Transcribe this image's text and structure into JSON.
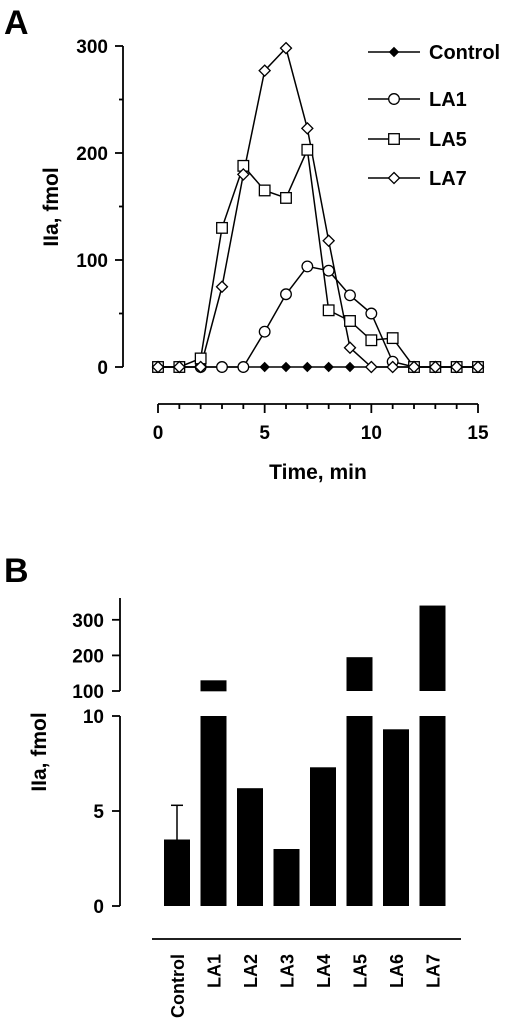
{
  "chart_data": [
    {
      "panel_label": "A",
      "type": "line",
      "xlabel": "Time, min",
      "ylabel": "IIa, fmol",
      "xlim": [
        0,
        15
      ],
      "ylim": [
        0,
        300
      ],
      "xticks": [
        "0",
        "5",
        "10",
        "15"
      ],
      "yticks": [
        "0",
        "100",
        "200",
        "300"
      ],
      "legend_position": "top-right",
      "series": [
        {
          "name": "Control",
          "marker": "filled-diamond",
          "x": [
            0,
            1,
            2,
            3,
            4,
            5,
            6,
            7,
            8,
            9,
            10,
            11,
            12,
            13,
            14,
            15
          ],
          "y": [
            0,
            0,
            0,
            0,
            0,
            0,
            0,
            0,
            0,
            0,
            0,
            0,
            0,
            0,
            0,
            0
          ]
        },
        {
          "name": "LA1",
          "marker": "open-circle",
          "x": [
            0,
            1,
            2,
            3,
            4,
            5,
            6,
            7,
            8,
            9,
            10,
            11,
            12,
            13,
            14,
            15
          ],
          "y": [
            0,
            0,
            0,
            0,
            0,
            33,
            68,
            94,
            90,
            67,
            50,
            5,
            0,
            0,
            0,
            0
          ]
        },
        {
          "name": "LA5",
          "marker": "open-square",
          "x": [
            0,
            1,
            2,
            3,
            4,
            5,
            6,
            7,
            8,
            9,
            10,
            11,
            12,
            13,
            14,
            15
          ],
          "y": [
            0,
            0,
            8,
            130,
            188,
            165,
            158,
            203,
            53,
            43,
            25,
            27,
            0,
            0,
            0,
            0
          ]
        },
        {
          "name": "LA7",
          "marker": "open-diamond",
          "x": [
            0,
            1,
            2,
            3,
            4,
            5,
            6,
            7,
            8,
            9,
            10,
            11,
            12,
            13,
            14,
            15
          ],
          "y": [
            0,
            0,
            0,
            75,
            180,
            277,
            298,
            223,
            118,
            18,
            0,
            0,
            0,
            0,
            0,
            0
          ]
        }
      ]
    },
    {
      "panel_label": "B",
      "type": "bar",
      "ylabel": "IIa, fmol",
      "categories": [
        "Control",
        "LA1",
        "LA2",
        "LA3",
        "LA4",
        "LA5",
        "LA6",
        "LA7"
      ],
      "values": [
        3.5,
        130,
        6.2,
        3.0,
        7.3,
        195,
        9.3,
        340
      ],
      "error_bars": [
        1.8,
        null,
        null,
        null,
        null,
        null,
        null,
        null
      ],
      "axis_break": true,
      "lower_ylim": [
        0,
        10
      ],
      "upper_ylim": [
        100,
        350
      ],
      "lower_yticks": [
        "0",
        "5",
        "10"
      ],
      "upper_yticks": [
        "100",
        "200",
        "300"
      ]
    }
  ]
}
